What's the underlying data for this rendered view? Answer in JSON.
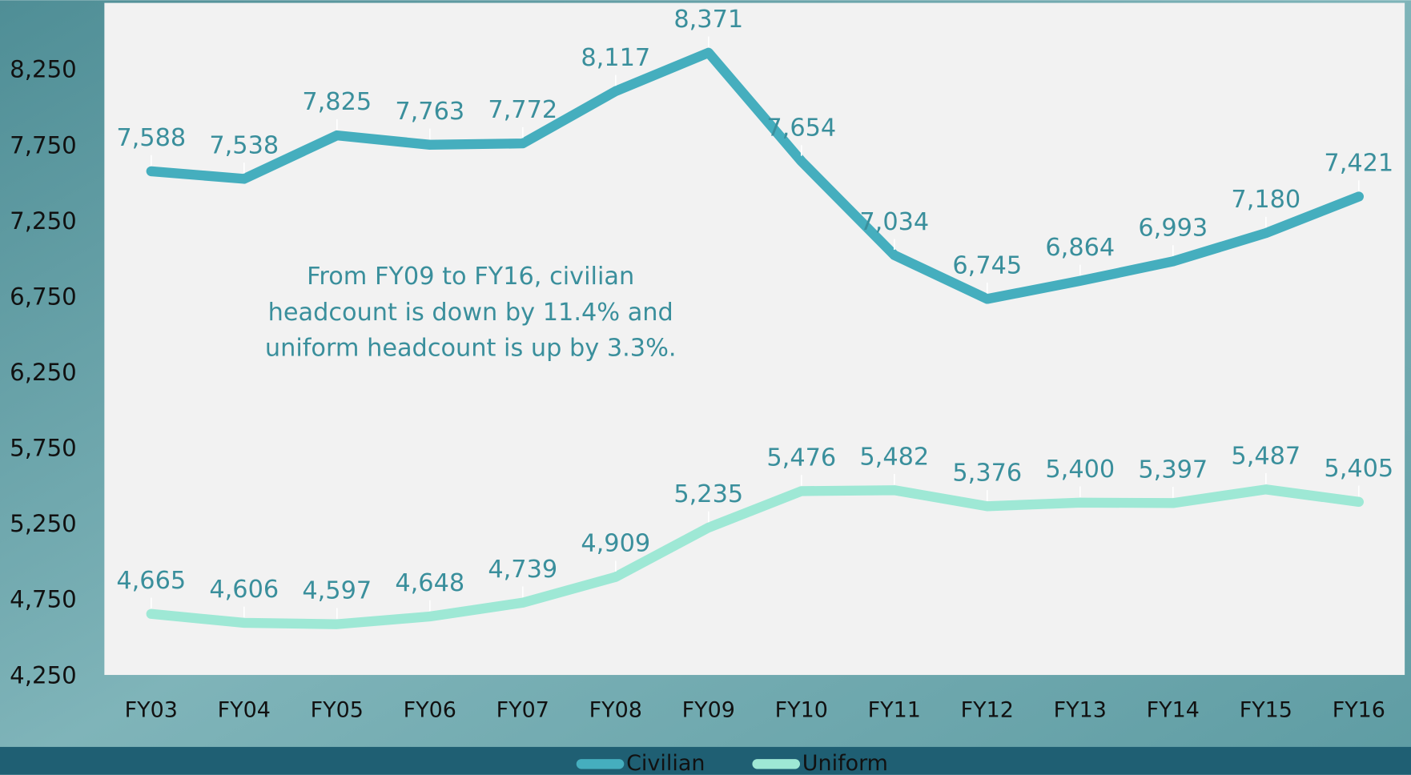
{
  "chart_data": {
    "type": "line",
    "categories": [
      "FY03",
      "FY04",
      "FY05",
      "FY06",
      "FY07",
      "FY08",
      "FY09",
      "FY10",
      "FY11",
      "FY12",
      "FY13",
      "FY14",
      "FY15",
      "FY16"
    ],
    "series": [
      {
        "name": "Civilian",
        "color": "#45aebe",
        "values": [
          7588,
          7538,
          7825,
          7763,
          7772,
          8117,
          8371,
          7654,
          7034,
          6745,
          6864,
          6993,
          7180,
          7421
        ],
        "value_labels": [
          "7,588",
          "7,538",
          "7,825",
          "7,763",
          "7,772",
          "8,117",
          "8,371",
          "7,654",
          "7,034",
          "6,745",
          "6,864",
          "6,993",
          "7,180",
          "7,421"
        ]
      },
      {
        "name": "Uniform",
        "color": "#9ee8d5",
        "values": [
          4665,
          4606,
          4597,
          4648,
          4739,
          4909,
          5235,
          5476,
          5482,
          5376,
          5400,
          5397,
          5487,
          5405
        ],
        "value_labels": [
          "4,665",
          "4,606",
          "4,597",
          "4,648",
          "4,739",
          "4,909",
          "5,235",
          "5,476",
          "5,482",
          "5,376",
          "5,400",
          "5,397",
          "5,487",
          "5,405"
        ]
      }
    ],
    "ylim": [
      4250,
      8700
    ],
    "yticks": [
      {
        "value": 4250,
        "label": "4,250"
      },
      {
        "value": 4750,
        "label": "4,750"
      },
      {
        "value": 5250,
        "label": "5,250"
      },
      {
        "value": 5750,
        "label": "5,750"
      },
      {
        "value": 6250,
        "label": "6,250"
      },
      {
        "value": 6750,
        "label": "6,750"
      },
      {
        "value": 7250,
        "label": "7,250"
      },
      {
        "value": 7750,
        "label": "7,750"
      },
      {
        "value": 8250,
        "label": "8,250"
      }
    ],
    "annotation": [
      "From FY09 to FY16, civilian",
      "headcount is down by 11.4% and",
      "uniform headcount is up by 3.3%."
    ],
    "legend": "bottom",
    "grid": false
  }
}
